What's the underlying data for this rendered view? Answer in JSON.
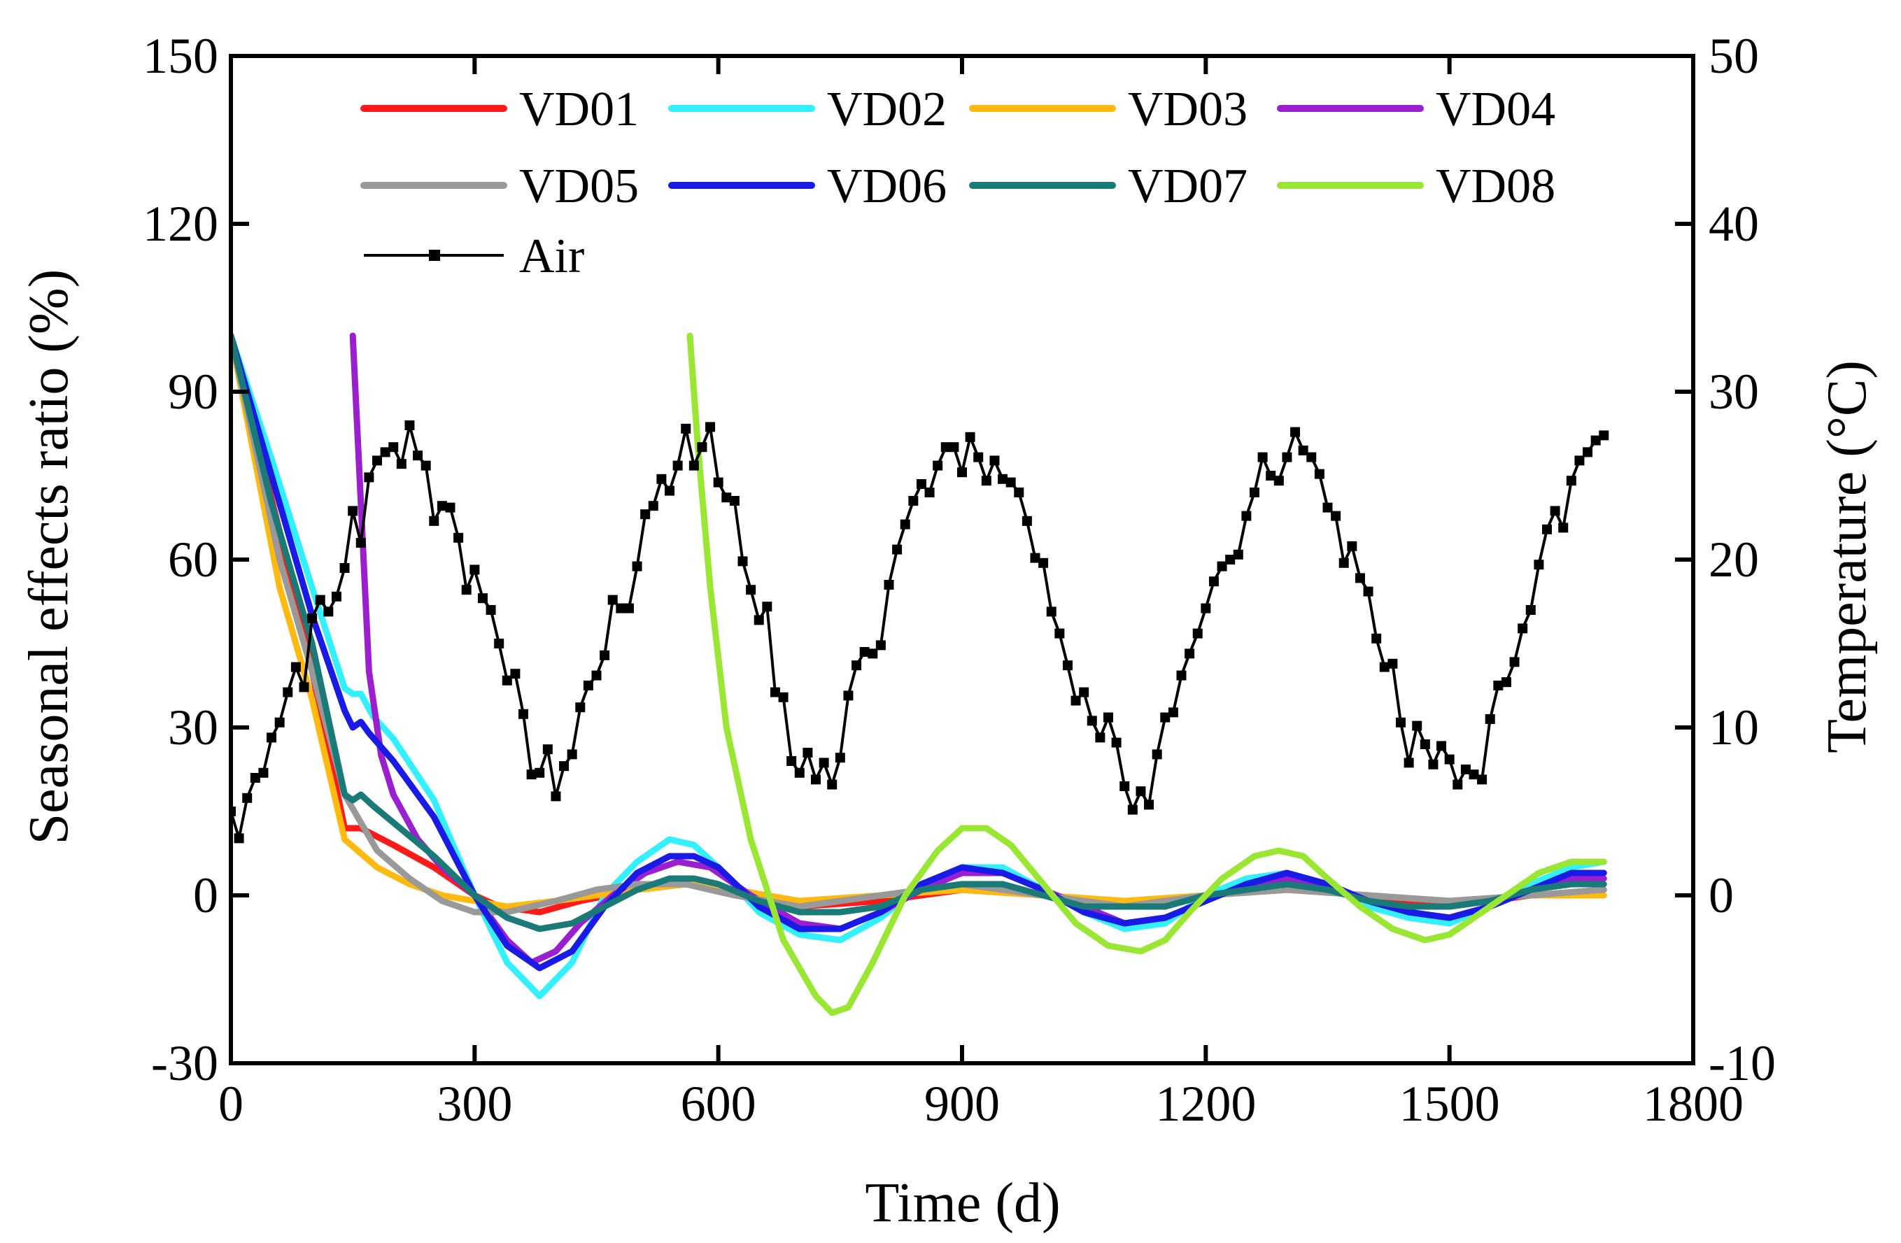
{
  "chart_data": {
    "type": "line",
    "xlabel": "Time (d)",
    "ylabel_left": "Seasonal effects ratio (%)",
    "ylabel_right": "Temperature (°C)",
    "xlim": [
      0,
      1800
    ],
    "ylim_left": [
      -30,
      150
    ],
    "ylim_right": [
      -10,
      50
    ],
    "x_ticks": [
      "0",
      "300",
      "600",
      "900",
      "1200",
      "1500",
      "1800"
    ],
    "y_left_ticks": [
      "-30",
      "0",
      "30",
      "60",
      "90",
      "120",
      "150"
    ],
    "y_right_ticks": [
      "-10",
      "0",
      "10",
      "20",
      "30",
      "40",
      "50"
    ],
    "grid": false,
    "legend_position": "top",
    "series": [
      {
        "name": "VD01",
        "color": "#ff1a1a",
        "x": [
          0,
          60,
          100,
          140,
          160,
          200,
          250,
          300,
          330,
          380,
          430,
          500,
          560,
          620,
          700,
          800,
          900,
          1000,
          1100,
          1200,
          1300,
          1400,
          1500,
          1600,
          1690
        ],
        "y": [
          100,
          65,
          40,
          12,
          12,
          9,
          5,
          0,
          -2,
          -3,
          -1,
          1,
          2,
          1,
          -2,
          -1,
          1,
          0,
          -2,
          0,
          1,
          0,
          -2,
          0,
          1
        ]
      },
      {
        "name": "VD02",
        "color": "#33f0ff",
        "x": [
          0,
          50,
          100,
          140,
          150,
          160,
          175,
          200,
          250,
          300,
          340,
          380,
          420,
          460,
          500,
          540,
          570,
          600,
          650,
          700,
          750,
          800,
          850,
          900,
          950,
          1000,
          1050,
          1100,
          1150,
          1200,
          1250,
          1300,
          1350,
          1400,
          1450,
          1500,
          1550,
          1600,
          1650,
          1690
        ],
        "y": [
          100,
          78,
          55,
          37,
          36,
          36,
          32,
          28,
          17,
          0,
          -12,
          -18,
          -12,
          0,
          6,
          10,
          9,
          5,
          -3,
          -7,
          -8,
          -4,
          2,
          5,
          5,
          1,
          -3,
          -6,
          -5,
          0,
          3,
          4,
          2,
          -2,
          -4,
          -5,
          -2,
          2,
          5,
          6
        ]
      },
      {
        "name": "VD03",
        "color": "#ffb90f",
        "x": [
          0,
          60,
          100,
          140,
          180,
          220,
          260,
          300,
          340,
          400,
          500,
          560,
          620,
          700,
          800,
          900,
          1000,
          1100,
          1200,
          1300,
          1400,
          1500,
          1600,
          1690
        ],
        "y": [
          100,
          55,
          35,
          10,
          5,
          2,
          0,
          -1,
          -2,
          -1,
          1,
          2,
          1,
          -1,
          0,
          1,
          0,
          -1,
          0,
          1,
          0,
          -1,
          0,
          0
        ]
      },
      {
        "name": "VD04",
        "color": "#9b1ecf",
        "x": [
          150,
          160,
          170,
          185,
          200,
          230,
          260,
          300,
          340,
          370,
          400,
          430,
          470,
          510,
          550,
          590,
          640,
          700,
          750,
          800,
          850,
          900,
          950,
          1000,
          1050,
          1100,
          1150,
          1200,
          1250,
          1300,
          1350,
          1400,
          1450,
          1500,
          1550,
          1600,
          1650,
          1690
        ],
        "y": [
          100,
          70,
          40,
          25,
          18,
          10,
          5,
          0,
          -8,
          -12,
          -10,
          -5,
          0,
          4,
          6,
          5,
          0,
          -5,
          -6,
          -3,
          1,
          4,
          4,
          1,
          -2,
          -5,
          -4,
          -1,
          2,
          3,
          2,
          -1,
          -3,
          -4,
          -2,
          1,
          3,
          3
        ]
      },
      {
        "name": "VD05",
        "color": "#999999",
        "x": [
          0,
          60,
          100,
          140,
          180,
          220,
          260,
          300,
          340,
          400,
          450,
          500,
          560,
          620,
          700,
          800,
          900,
          1000,
          1100,
          1200,
          1300,
          1400,
          1500,
          1600,
          1690
        ],
        "y": [
          100,
          60,
          40,
          18,
          8,
          3,
          -1,
          -3,
          -3,
          -1,
          1,
          2,
          2,
          0,
          -2,
          0,
          2,
          0,
          -2,
          0,
          1,
          0,
          -1,
          0,
          1
        ]
      },
      {
        "name": "VD06",
        "color": "#1a1ae6",
        "x": [
          0,
          50,
          100,
          140,
          150,
          160,
          170,
          200,
          250,
          300,
          340,
          380,
          420,
          460,
          500,
          540,
          570,
          600,
          650,
          700,
          750,
          800,
          850,
          900,
          950,
          1000,
          1050,
          1100,
          1150,
          1200,
          1250,
          1300,
          1350,
          1400,
          1450,
          1500,
          1550,
          1600,
          1650,
          1690
        ],
        "y": [
          100,
          75,
          50,
          33,
          30,
          31,
          29,
          24,
          14,
          0,
          -9,
          -13,
          -10,
          -2,
          4,
          7,
          7,
          5,
          -2,
          -6,
          -6,
          -3,
          2,
          5,
          4,
          1,
          -3,
          -5,
          -4,
          -1,
          2,
          4,
          2,
          -1,
          -3,
          -4,
          -2,
          1,
          4,
          4
        ]
      },
      {
        "name": "VD07",
        "color": "#1a7a78",
        "x": [
          0,
          50,
          100,
          140,
          150,
          160,
          175,
          200,
          250,
          300,
          340,
          380,
          420,
          460,
          500,
          540,
          570,
          600,
          650,
          700,
          750,
          800,
          850,
          900,
          950,
          1000,
          1050,
          1100,
          1150,
          1200,
          1250,
          1300,
          1350,
          1400,
          1450,
          1500,
          1550,
          1600,
          1650,
          1690
        ],
        "y": [
          100,
          70,
          45,
          18,
          17,
          18,
          16,
          13,
          7,
          0,
          -4,
          -6,
          -5,
          -2,
          1,
          3,
          3,
          2,
          -1,
          -3,
          -3,
          -2,
          1,
          2,
          2,
          0,
          -2,
          -2,
          -2,
          0,
          1,
          2,
          1,
          -1,
          -2,
          -2,
          -1,
          1,
          2,
          2
        ]
      },
      {
        "name": "VD08",
        "color": "#99e633",
        "x": [
          565,
          575,
          590,
          610,
          640,
          680,
          720,
          740,
          760,
          790,
          830,
          870,
          900,
          930,
          960,
          1000,
          1040,
          1080,
          1120,
          1150,
          1180,
          1220,
          1260,
          1290,
          1320,
          1350,
          1390,
          1430,
          1470,
          1500,
          1530,
          1570,
          1610,
          1650,
          1690
        ],
        "y": [
          100,
          80,
          55,
          30,
          10,
          -8,
          -18,
          -21,
          -20,
          -12,
          0,
          8,
          12,
          12,
          9,
          2,
          -5,
          -9,
          -10,
          -8,
          -3,
          3,
          7,
          8,
          7,
          3,
          -2,
          -6,
          -8,
          -7,
          -4,
          0,
          4,
          6,
          6
        ]
      },
      {
        "name": "Air",
        "color": "#000000",
        "axis": "right",
        "marker": "square",
        "x": [
          0,
          10,
          20,
          30,
          40,
          50,
          60,
          70,
          80,
          90,
          100,
          110,
          120,
          130,
          140,
          150,
          160,
          170,
          180,
          190,
          200,
          210,
          220,
          230,
          240,
          250,
          260,
          270,
          280,
          290,
          300,
          310,
          320,
          330,
          340,
          350,
          360,
          370,
          380,
          390,
          400,
          410,
          420,
          430,
          440,
          450,
          460,
          470,
          480,
          490,
          500,
          510,
          520,
          530,
          540,
          550,
          560,
          570,
          580,
          590,
          600,
          610,
          620,
          630,
          640,
          650,
          660,
          670,
          680,
          690,
          700,
          710,
          720,
          730,
          740,
          750,
          760,
          770,
          780,
          790,
          800,
          810,
          820,
          830,
          840,
          850,
          860,
          870,
          880,
          890,
          900,
          910,
          920,
          930,
          940,
          950,
          960,
          970,
          980,
          990,
          1000,
          1010,
          1020,
          1030,
          1040,
          1050,
          1060,
          1070,
          1080,
          1090,
          1100,
          1110,
          1120,
          1130,
          1140,
          1150,
          1160,
          1170,
          1180,
          1190,
          1200,
          1210,
          1220,
          1230,
          1240,
          1250,
          1260,
          1270,
          1280,
          1290,
          1300,
          1310,
          1320,
          1330,
          1340,
          1350,
          1360,
          1370,
          1380,
          1390,
          1400,
          1410,
          1420,
          1430,
          1440,
          1450,
          1460,
          1470,
          1480,
          1490,
          1500,
          1510,
          1520,
          1530,
          1540,
          1550,
          1560,
          1570,
          1580,
          1590,
          1600,
          1610,
          1620,
          1630,
          1640,
          1650,
          1660,
          1670,
          1680,
          1690
        ],
        "y": [
          5.0,
          3.4,
          5.8,
          7.0,
          7.3,
          9.4,
          10.3,
          12.1,
          13.6,
          12.4,
          16.5,
          17.6,
          16.9,
          17.8,
          19.5,
          22.9,
          21.0,
          24.9,
          25.9,
          26.4,
          26.7,
          25.7,
          28.0,
          26.2,
          25.6,
          22.3,
          23.2,
          23.1,
          21.3,
          18.2,
          19.4,
          17.7,
          17.0,
          15.0,
          12.8,
          13.2,
          10.8,
          7.2,
          7.3,
          8.7,
          5.9,
          7.7,
          8.4,
          11.2,
          12.5,
          13.1,
          14.3,
          17.6,
          17.1,
          17.1,
          19.6,
          22.7,
          23.2,
          24.8,
          24.1,
          25.6,
          27.8,
          25.6,
          26.7,
          27.9,
          24.6,
          23.7,
          23.5,
          19.9,
          18.2,
          16.4,
          17.2,
          12.1,
          11.8,
          8.0,
          7.3,
          8.5,
          6.9,
          7.9,
          6.6,
          8.2,
          11.9,
          13.7,
          14.5,
          14.4,
          14.9,
          18.5,
          20.6,
          22.1,
          23.5,
          24.5,
          24.0,
          25.6,
          26.7,
          26.7,
          25.2,
          27.3,
          26.1,
          24.7,
          25.9,
          24.8,
          24.6,
          24.0,
          22.3,
          20.1,
          19.8,
          16.9,
          15.6,
          13.7,
          11.6,
          12.1,
          10.4,
          9.4,
          10.6,
          9.1,
          6.5,
          5.1,
          6.2,
          5.4,
          8.4,
          10.6,
          10.9,
          13.1,
          14.4,
          15.6,
          17.1,
          18.7,
          19.6,
          20.0,
          20.3,
          22.6,
          24.0,
          26.1,
          25.0,
          24.7,
          26.1,
          27.6,
          26.5,
          26.1,
          25.1,
          23.1,
          22.6,
          19.8,
          20.8,
          18.9,
          18.1,
          15.3,
          13.6,
          13.8,
          10.3,
          7.9,
          10.1,
          9.0,
          7.8,
          8.9,
          8.1,
          6.6,
          7.5,
          7.2,
          6.9,
          10.5,
          12.5,
          12.7,
          13.9,
          15.9,
          17.0,
          19.7,
          21.8,
          22.9,
          21.9,
          24.7,
          25.9,
          26.4,
          27.1,
          27.4
        ]
      }
    ]
  }
}
